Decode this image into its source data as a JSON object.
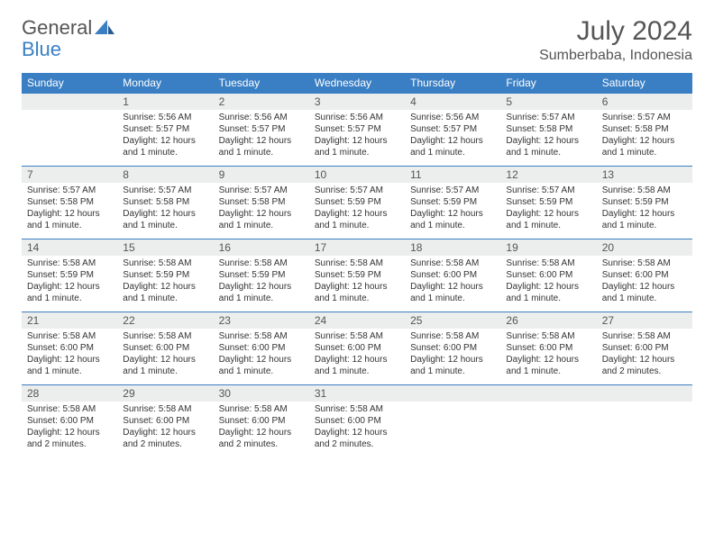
{
  "logo": {
    "word1": "General",
    "word2": "Blue"
  },
  "title": "July 2024",
  "location": "Sumberbaba, Indonesia",
  "colors": {
    "header_bg": "#3a7fc4",
    "header_text": "#ffffff",
    "daynum_bg": "#eceded",
    "rule": "#3a7fc4",
    "text": "#333333",
    "title_text": "#555555"
  },
  "day_headers": [
    "Sunday",
    "Monday",
    "Tuesday",
    "Wednesday",
    "Thursday",
    "Friday",
    "Saturday"
  ],
  "weeks": [
    [
      {
        "n": "",
        "sunrise": "",
        "sunset": "",
        "daylight": ""
      },
      {
        "n": "1",
        "sunrise": "Sunrise: 5:56 AM",
        "sunset": "Sunset: 5:57 PM",
        "daylight": "Daylight: 12 hours and 1 minute."
      },
      {
        "n": "2",
        "sunrise": "Sunrise: 5:56 AM",
        "sunset": "Sunset: 5:57 PM",
        "daylight": "Daylight: 12 hours and 1 minute."
      },
      {
        "n": "3",
        "sunrise": "Sunrise: 5:56 AM",
        "sunset": "Sunset: 5:57 PM",
        "daylight": "Daylight: 12 hours and 1 minute."
      },
      {
        "n": "4",
        "sunrise": "Sunrise: 5:56 AM",
        "sunset": "Sunset: 5:57 PM",
        "daylight": "Daylight: 12 hours and 1 minute."
      },
      {
        "n": "5",
        "sunrise": "Sunrise: 5:57 AM",
        "sunset": "Sunset: 5:58 PM",
        "daylight": "Daylight: 12 hours and 1 minute."
      },
      {
        "n": "6",
        "sunrise": "Sunrise: 5:57 AM",
        "sunset": "Sunset: 5:58 PM",
        "daylight": "Daylight: 12 hours and 1 minute."
      }
    ],
    [
      {
        "n": "7",
        "sunrise": "Sunrise: 5:57 AM",
        "sunset": "Sunset: 5:58 PM",
        "daylight": "Daylight: 12 hours and 1 minute."
      },
      {
        "n": "8",
        "sunrise": "Sunrise: 5:57 AM",
        "sunset": "Sunset: 5:58 PM",
        "daylight": "Daylight: 12 hours and 1 minute."
      },
      {
        "n": "9",
        "sunrise": "Sunrise: 5:57 AM",
        "sunset": "Sunset: 5:58 PM",
        "daylight": "Daylight: 12 hours and 1 minute."
      },
      {
        "n": "10",
        "sunrise": "Sunrise: 5:57 AM",
        "sunset": "Sunset: 5:59 PM",
        "daylight": "Daylight: 12 hours and 1 minute."
      },
      {
        "n": "11",
        "sunrise": "Sunrise: 5:57 AM",
        "sunset": "Sunset: 5:59 PM",
        "daylight": "Daylight: 12 hours and 1 minute."
      },
      {
        "n": "12",
        "sunrise": "Sunrise: 5:57 AM",
        "sunset": "Sunset: 5:59 PM",
        "daylight": "Daylight: 12 hours and 1 minute."
      },
      {
        "n": "13",
        "sunrise": "Sunrise: 5:58 AM",
        "sunset": "Sunset: 5:59 PM",
        "daylight": "Daylight: 12 hours and 1 minute."
      }
    ],
    [
      {
        "n": "14",
        "sunrise": "Sunrise: 5:58 AM",
        "sunset": "Sunset: 5:59 PM",
        "daylight": "Daylight: 12 hours and 1 minute."
      },
      {
        "n": "15",
        "sunrise": "Sunrise: 5:58 AM",
        "sunset": "Sunset: 5:59 PM",
        "daylight": "Daylight: 12 hours and 1 minute."
      },
      {
        "n": "16",
        "sunrise": "Sunrise: 5:58 AM",
        "sunset": "Sunset: 5:59 PM",
        "daylight": "Daylight: 12 hours and 1 minute."
      },
      {
        "n": "17",
        "sunrise": "Sunrise: 5:58 AM",
        "sunset": "Sunset: 5:59 PM",
        "daylight": "Daylight: 12 hours and 1 minute."
      },
      {
        "n": "18",
        "sunrise": "Sunrise: 5:58 AM",
        "sunset": "Sunset: 6:00 PM",
        "daylight": "Daylight: 12 hours and 1 minute."
      },
      {
        "n": "19",
        "sunrise": "Sunrise: 5:58 AM",
        "sunset": "Sunset: 6:00 PM",
        "daylight": "Daylight: 12 hours and 1 minute."
      },
      {
        "n": "20",
        "sunrise": "Sunrise: 5:58 AM",
        "sunset": "Sunset: 6:00 PM",
        "daylight": "Daylight: 12 hours and 1 minute."
      }
    ],
    [
      {
        "n": "21",
        "sunrise": "Sunrise: 5:58 AM",
        "sunset": "Sunset: 6:00 PM",
        "daylight": "Daylight: 12 hours and 1 minute."
      },
      {
        "n": "22",
        "sunrise": "Sunrise: 5:58 AM",
        "sunset": "Sunset: 6:00 PM",
        "daylight": "Daylight: 12 hours and 1 minute."
      },
      {
        "n": "23",
        "sunrise": "Sunrise: 5:58 AM",
        "sunset": "Sunset: 6:00 PM",
        "daylight": "Daylight: 12 hours and 1 minute."
      },
      {
        "n": "24",
        "sunrise": "Sunrise: 5:58 AM",
        "sunset": "Sunset: 6:00 PM",
        "daylight": "Daylight: 12 hours and 1 minute."
      },
      {
        "n": "25",
        "sunrise": "Sunrise: 5:58 AM",
        "sunset": "Sunset: 6:00 PM",
        "daylight": "Daylight: 12 hours and 1 minute."
      },
      {
        "n": "26",
        "sunrise": "Sunrise: 5:58 AM",
        "sunset": "Sunset: 6:00 PM",
        "daylight": "Daylight: 12 hours and 1 minute."
      },
      {
        "n": "27",
        "sunrise": "Sunrise: 5:58 AM",
        "sunset": "Sunset: 6:00 PM",
        "daylight": "Daylight: 12 hours and 2 minutes."
      }
    ],
    [
      {
        "n": "28",
        "sunrise": "Sunrise: 5:58 AM",
        "sunset": "Sunset: 6:00 PM",
        "daylight": "Daylight: 12 hours and 2 minutes."
      },
      {
        "n": "29",
        "sunrise": "Sunrise: 5:58 AM",
        "sunset": "Sunset: 6:00 PM",
        "daylight": "Daylight: 12 hours and 2 minutes."
      },
      {
        "n": "30",
        "sunrise": "Sunrise: 5:58 AM",
        "sunset": "Sunset: 6:00 PM",
        "daylight": "Daylight: 12 hours and 2 minutes."
      },
      {
        "n": "31",
        "sunrise": "Sunrise: 5:58 AM",
        "sunset": "Sunset: 6:00 PM",
        "daylight": "Daylight: 12 hours and 2 minutes."
      },
      {
        "n": "",
        "sunrise": "",
        "sunset": "",
        "daylight": ""
      },
      {
        "n": "",
        "sunrise": "",
        "sunset": "",
        "daylight": ""
      },
      {
        "n": "",
        "sunrise": "",
        "sunset": "",
        "daylight": ""
      }
    ]
  ]
}
